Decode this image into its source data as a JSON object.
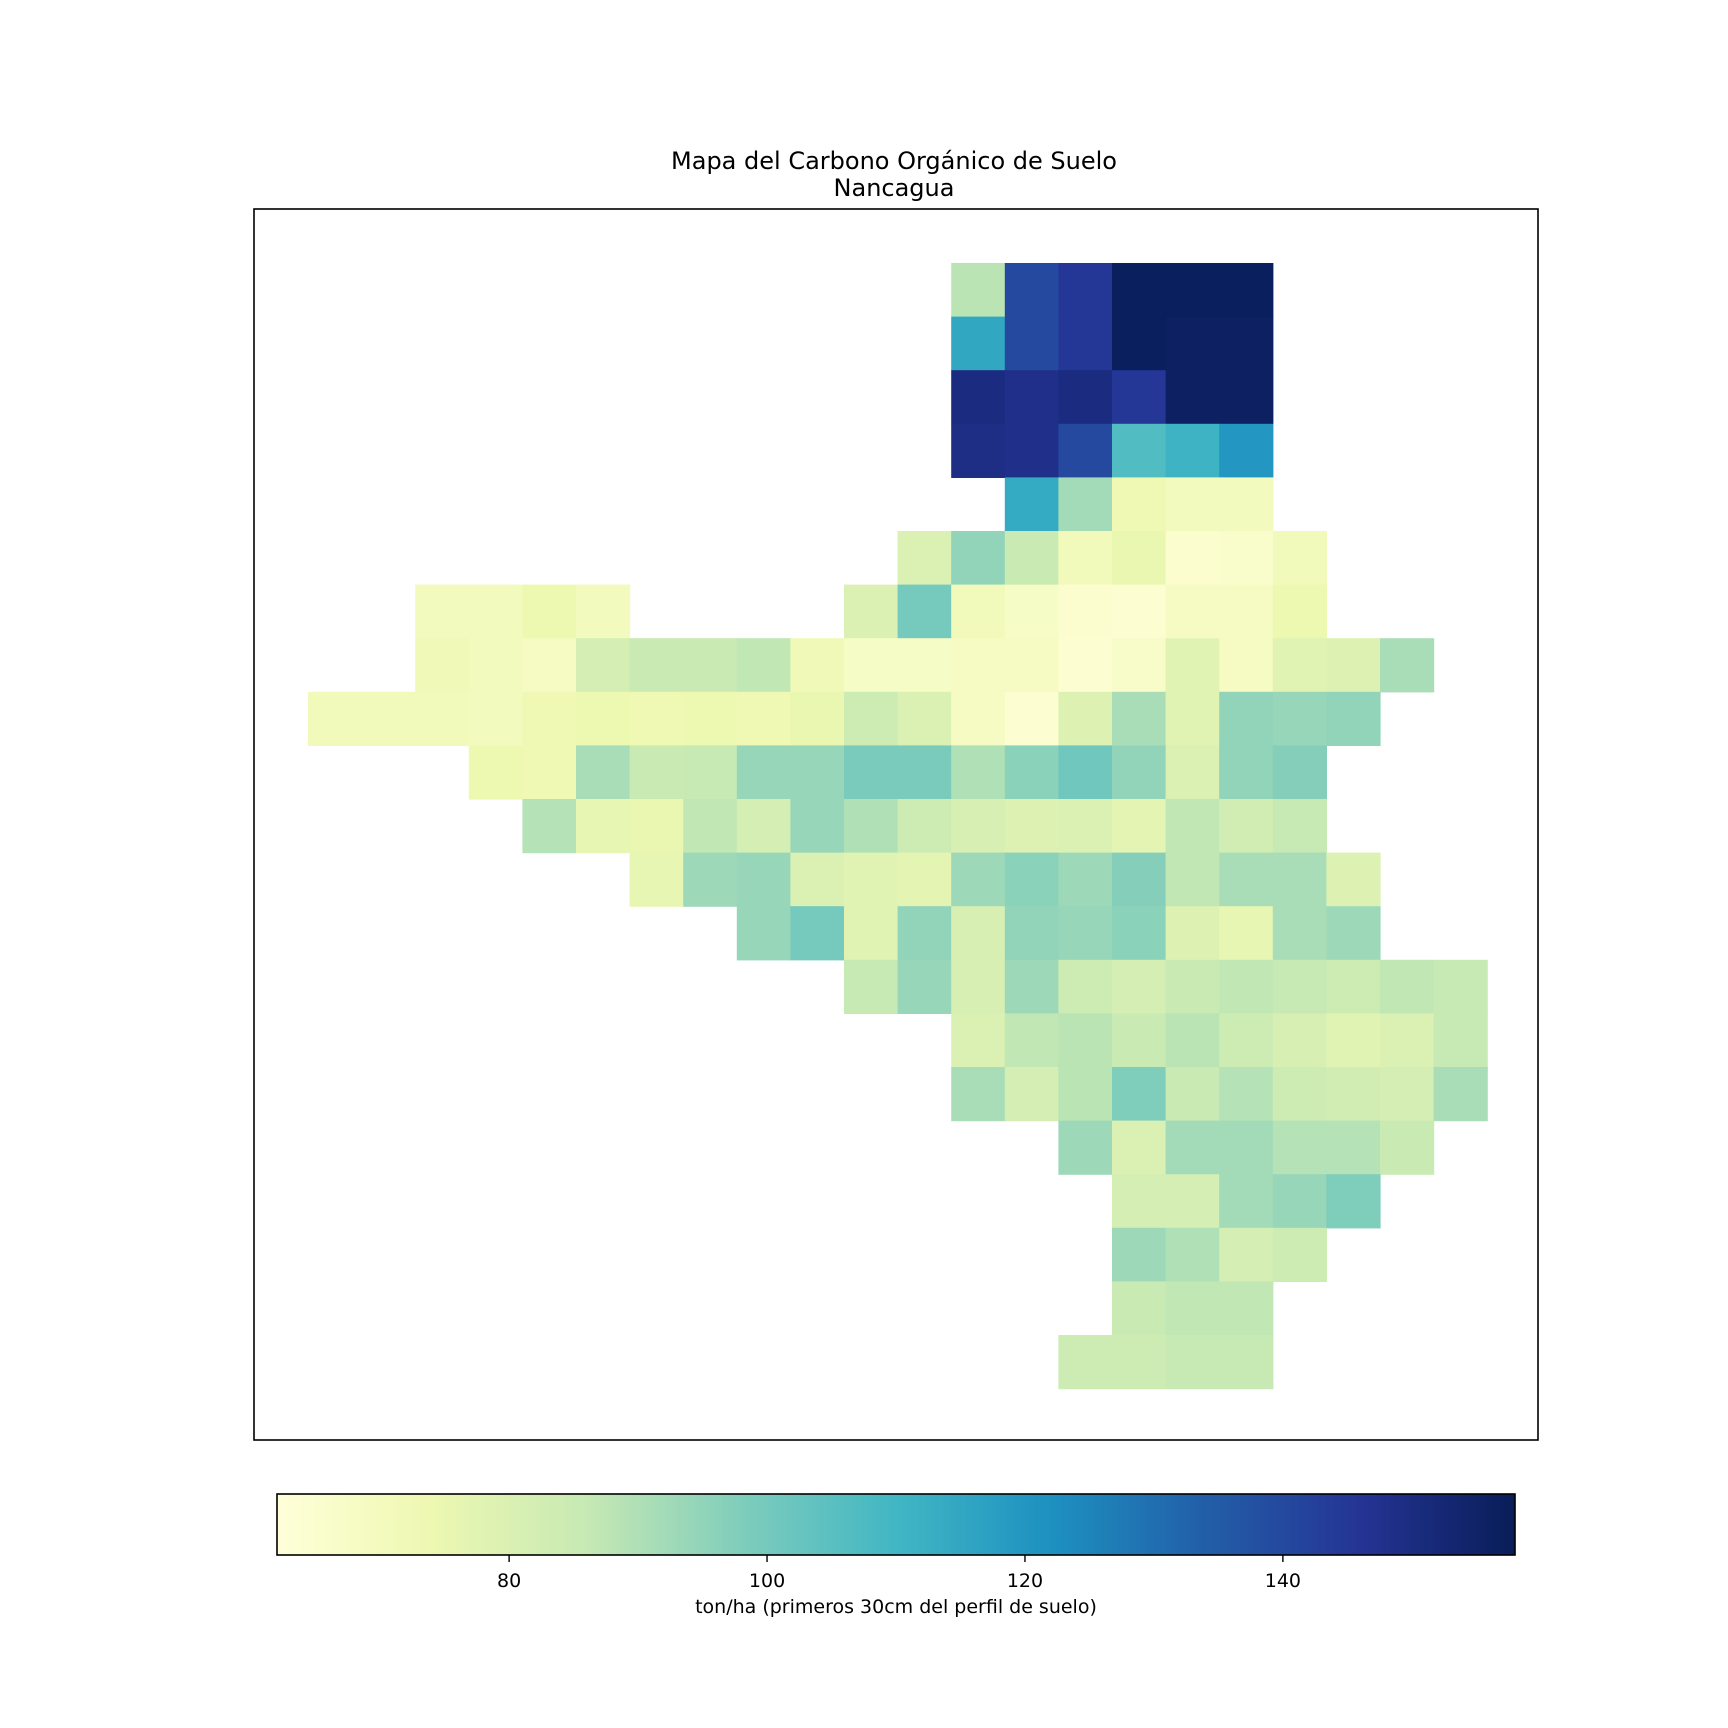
{
  "chart_data": {
    "type": "heatmap",
    "title": "Mapa del Carbono Orgánico de Suelo",
    "subtitle": "Nancagua",
    "colorbar": {
      "label": "ton/ha (primeros 30cm del perfil de suelo)",
      "range": [
        62,
        158
      ],
      "ticks": [
        80,
        100,
        120,
        140
      ],
      "colormap": "YlGnBu",
      "orientation": "horizontal",
      "placement": "bottom"
    },
    "axes_visible": false,
    "grid": {
      "rows": 21,
      "cols": 22,
      "values": [
        [
          null,
          null,
          null,
          null,
          null,
          null,
          null,
          null,
          null,
          null,
          null,
          null,
          88,
          140,
          145,
          157,
          157,
          157,
          null,
          null,
          null,
          null
        ],
        [
          null,
          null,
          null,
          null,
          null,
          null,
          null,
          null,
          null,
          null,
          null,
          null,
          115,
          140,
          145,
          157,
          156,
          156,
          null,
          null,
          null,
          null
        ],
        [
          null,
          null,
          null,
          null,
          null,
          null,
          null,
          null,
          null,
          null,
          null,
          null,
          150,
          148,
          150,
          145,
          156,
          156,
          null,
          null,
          null,
          null
        ],
        [
          null,
          null,
          null,
          null,
          null,
          null,
          null,
          null,
          null,
          null,
          null,
          null,
          149,
          148,
          140,
          107,
          111,
          120,
          null,
          null,
          null,
          null
        ],
        [
          null,
          null,
          null,
          null,
          null,
          null,
          null,
          null,
          null,
          null,
          null,
          null,
          null,
          114,
          92,
          73,
          70,
          70,
          null,
          null,
          null,
          null
        ],
        [
          null,
          null,
          null,
          null,
          null,
          null,
          null,
          null,
          null,
          null,
          null,
          80,
          95,
          85,
          71,
          75,
          65,
          66,
          71,
          null,
          null,
          null
        ],
        [
          null,
          null,
          null,
          null,
          null,
          null,
          null,
          null,
          null,
          null,
          80,
          100,
          71,
          68,
          65,
          64,
          69,
          69,
          74,
          null,
          null,
          null
        ],
        [
          null,
          null,
          null,
          null,
          null,
          null,
          null,
          null,
          null,
          null,
          null,
          null,
          null,
          null,
          null,
          null,
          null,
          null,
          null,
          null,
          null,
          null
        ],
        [
          null,
          null,
          null,
          null,
          null,
          null,
          null,
          null,
          null,
          null,
          null,
          null,
          null,
          null,
          null,
          null,
          null,
          null,
          null,
          null,
          null,
          null
        ],
        [
          null,
          null,
          null,
          null,
          null,
          null,
          null,
          null,
          null,
          null,
          null,
          null,
          null,
          null,
          null,
          null,
          null,
          null,
          null,
          null,
          null,
          null
        ],
        [
          null,
          null,
          null,
          null,
          null,
          null,
          null,
          null,
          null,
          null,
          null,
          null,
          null,
          null,
          null,
          null,
          null,
          null,
          null,
          null,
          null,
          null
        ],
        [
          null,
          null,
          null,
          null,
          null,
          null,
          null,
          null,
          null,
          null,
          null,
          null,
          null,
          null,
          null,
          null,
          null,
          null,
          null,
          null,
          null,
          null
        ],
        [
          null,
          null,
          null,
          null,
          null,
          null,
          null,
          null,
          null,
          null,
          null,
          null,
          null,
          null,
          null,
          null,
          null,
          null,
          null,
          null,
          null,
          null
        ],
        [
          null,
          null,
          null,
          null,
          null,
          null,
          null,
          null,
          null,
          null,
          null,
          null,
          null,
          null,
          null,
          null,
          null,
          null,
          null,
          null,
          null,
          null
        ],
        [
          null,
          null,
          null,
          null,
          null,
          null,
          null,
          null,
          null,
          null,
          null,
          null,
          null,
          null,
          null,
          null,
          null,
          null,
          null,
          null,
          null,
          null
        ],
        [
          null,
          null,
          null,
          null,
          null,
          null,
          null,
          null,
          null,
          null,
          null,
          null,
          null,
          null,
          null,
          null,
          null,
          null,
          null,
          null,
          null,
          null
        ],
        [
          null,
          null,
          null,
          null,
          null,
          null,
          null,
          null,
          null,
          null,
          null,
          null,
          null,
          null,
          null,
          null,
          null,
          null,
          null,
          null,
          null,
          null
        ],
        [
          null,
          null,
          null,
          null,
          null,
          null,
          null,
          null,
          null,
          null,
          null,
          null,
          null,
          null,
          null,
          null,
          null,
          null,
          null,
          null,
          null,
          null
        ],
        [
          null,
          null,
          null,
          null,
          null,
          null,
          null,
          null,
          null,
          null,
          null,
          null,
          null,
          null,
          null,
          null,
          null,
          null,
          null,
          null,
          null,
          null
        ],
        [
          null,
          null,
          null,
          null,
          null,
          null,
          null,
          null,
          null,
          null,
          null,
          null,
          null,
          null,
          null,
          null,
          null,
          null,
          null,
          null,
          null,
          null
        ],
        [
          null,
          null,
          null,
          null,
          null,
          null,
          null,
          null,
          null,
          null,
          null,
          null,
          null,
          null,
          null,
          null,
          null,
          null,
          null,
          null,
          null,
          null
        ]
      ]
    }
  }
}
